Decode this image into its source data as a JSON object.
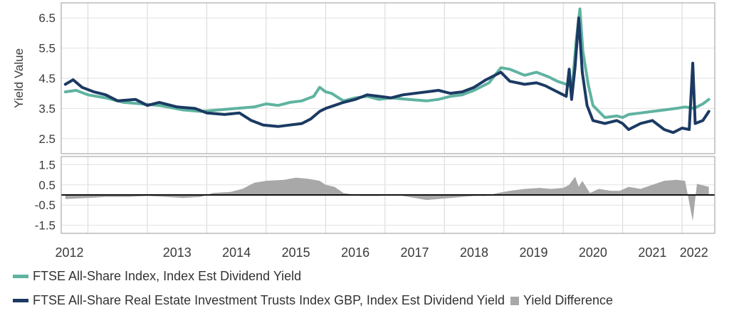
{
  "chart_data": {
    "type": "line",
    "ylabel": "Yield Value",
    "x_ticks": [
      "2012",
      "2013",
      "2014",
      "2015",
      "2016",
      "2017",
      "2018",
      "2019",
      "2020",
      "2021",
      "2022"
    ],
    "top_panel": {
      "ylim": [
        2.0,
        7.0
      ],
      "y_ticks": [
        "6.5",
        "5.5",
        "4.5",
        "3.5",
        "2.5"
      ],
      "series": [
        {
          "name": "FTSE All-Share Index, Index Est Dividend Yield",
          "color": "#5fb3a0",
          "points": [
            [
              2011.62,
              4.05
            ],
            [
              2011.8,
              4.1
            ],
            [
              2012.0,
              3.95
            ],
            [
              2012.3,
              3.85
            ],
            [
              2012.6,
              3.7
            ],
            [
              2012.9,
              3.65
            ],
            [
              2013.2,
              3.6
            ],
            [
              2013.6,
              3.45
            ],
            [
              2013.9,
              3.4
            ],
            [
              2014.2,
              3.45
            ],
            [
              2014.5,
              3.5
            ],
            [
              2014.8,
              3.55
            ],
            [
              2015.0,
              3.65
            ],
            [
              2015.2,
              3.6
            ],
            [
              2015.4,
              3.7
            ],
            [
              2015.6,
              3.75
            ],
            [
              2015.8,
              3.9
            ],
            [
              2015.9,
              4.2
            ],
            [
              2016.0,
              4.05
            ],
            [
              2016.1,
              4.0
            ],
            [
              2016.3,
              3.75
            ],
            [
              2016.5,
              3.85
            ],
            [
              2016.7,
              3.9
            ],
            [
              2016.9,
              3.8
            ],
            [
              2017.1,
              3.85
            ],
            [
              2017.4,
              3.8
            ],
            [
              2017.7,
              3.75
            ],
            [
              2017.9,
              3.8
            ],
            [
              2018.1,
              3.9
            ],
            [
              2018.3,
              3.95
            ],
            [
              2018.5,
              4.1
            ],
            [
              2018.75,
              4.35
            ],
            [
              2018.95,
              4.85
            ],
            [
              2019.1,
              4.8
            ],
            [
              2019.35,
              4.6
            ],
            [
              2019.55,
              4.7
            ],
            [
              2019.75,
              4.55
            ],
            [
              2019.9,
              4.4
            ],
            [
              2020.05,
              4.3
            ],
            [
              2020.15,
              4.2
            ],
            [
              2020.22,
              5.8
            ],
            [
              2020.28,
              6.8
            ],
            [
              2020.33,
              5.4
            ],
            [
              2020.42,
              4.3
            ],
            [
              2020.5,
              3.6
            ],
            [
              2020.7,
              3.2
            ],
            [
              2020.9,
              3.25
            ],
            [
              2021.0,
              3.2
            ],
            [
              2021.1,
              3.3
            ],
            [
              2021.3,
              3.35
            ],
            [
              2021.5,
              3.4
            ],
            [
              2021.7,
              3.45
            ],
            [
              2021.9,
              3.5
            ],
            [
              2022.05,
              3.55
            ],
            [
              2022.2,
              3.5
            ],
            [
              2022.35,
              3.65
            ],
            [
              2022.45,
              3.8
            ]
          ]
        },
        {
          "name": "FTSE All-Share Real Estate Investment Trusts Index GBP, Index Est Dividend Yield",
          "color": "#1b3a63",
          "points": [
            [
              2011.62,
              4.3
            ],
            [
              2011.75,
              4.45
            ],
            [
              2011.9,
              4.2
            ],
            [
              2012.1,
              4.05
            ],
            [
              2012.3,
              3.95
            ],
            [
              2012.5,
              3.75
            ],
            [
              2012.8,
              3.8
            ],
            [
              2013.0,
              3.6
            ],
            [
              2013.2,
              3.7
            ],
            [
              2013.5,
              3.55
            ],
            [
              2013.8,
              3.5
            ],
            [
              2014.0,
              3.35
            ],
            [
              2014.3,
              3.3
            ],
            [
              2014.55,
              3.35
            ],
            [
              2014.75,
              3.1
            ],
            [
              2014.95,
              2.95
            ],
            [
              2015.2,
              2.9
            ],
            [
              2015.4,
              2.95
            ],
            [
              2015.6,
              3.0
            ],
            [
              2015.75,
              3.15
            ],
            [
              2015.9,
              3.4
            ],
            [
              2016.0,
              3.5
            ],
            [
              2016.15,
              3.6
            ],
            [
              2016.3,
              3.7
            ],
            [
              2016.5,
              3.8
            ],
            [
              2016.7,
              3.95
            ],
            [
              2016.9,
              3.9
            ],
            [
              2017.1,
              3.85
            ],
            [
              2017.3,
              3.95
            ],
            [
              2017.5,
              4.0
            ],
            [
              2017.7,
              4.05
            ],
            [
              2017.9,
              4.1
            ],
            [
              2018.1,
              4.0
            ],
            [
              2018.3,
              4.05
            ],
            [
              2018.5,
              4.2
            ],
            [
              2018.7,
              4.45
            ],
            [
              2018.95,
              4.7
            ],
            [
              2019.1,
              4.4
            ],
            [
              2019.35,
              4.3
            ],
            [
              2019.55,
              4.35
            ],
            [
              2019.7,
              4.25
            ],
            [
              2019.85,
              4.1
            ],
            [
              2019.95,
              4.0
            ],
            [
              2020.05,
              3.9
            ],
            [
              2020.1,
              4.8
            ],
            [
              2020.14,
              3.8
            ],
            [
              2020.2,
              4.9
            ],
            [
              2020.26,
              6.5
            ],
            [
              2020.32,
              4.7
            ],
            [
              2020.4,
              3.6
            ],
            [
              2020.5,
              3.1
            ],
            [
              2020.7,
              3.0
            ],
            [
              2020.9,
              3.1
            ],
            [
              2021.0,
              3.0
            ],
            [
              2021.1,
              2.8
            ],
            [
              2021.3,
              3.0
            ],
            [
              2021.5,
              3.1
            ],
            [
              2021.7,
              2.8
            ],
            [
              2021.85,
              2.7
            ],
            [
              2022.0,
              2.85
            ],
            [
              2022.12,
              2.8
            ],
            [
              2022.18,
              5.0
            ],
            [
              2022.22,
              3.0
            ],
            [
              2022.35,
              3.1
            ],
            [
              2022.45,
              3.4
            ]
          ]
        }
      ]
    },
    "bottom_panel": {
      "ylim": [
        -1.9,
        1.9
      ],
      "y_ticks": [
        "1.5",
        "0.5",
        "-0.5",
        "-1.5"
      ],
      "series": [
        {
          "name": "Yield Difference",
          "type": "area",
          "color": "#a8a8a8",
          "points": [
            [
              2011.62,
              -0.2
            ],
            [
              2012.0,
              -0.15
            ],
            [
              2012.3,
              -0.1
            ],
            [
              2012.7,
              -0.1
            ],
            [
              2013.0,
              -0.05
            ],
            [
              2013.3,
              -0.1
            ],
            [
              2013.6,
              -0.15
            ],
            [
              2013.9,
              -0.1
            ],
            [
              2014.1,
              0.1
            ],
            [
              2014.4,
              0.15
            ],
            [
              2014.6,
              0.3
            ],
            [
              2014.8,
              0.6
            ],
            [
              2015.0,
              0.7
            ],
            [
              2015.3,
              0.75
            ],
            [
              2015.5,
              0.85
            ],
            [
              2015.7,
              0.8
            ],
            [
              2015.9,
              0.7
            ],
            [
              2016.0,
              0.5
            ],
            [
              2016.15,
              0.4
            ],
            [
              2016.3,
              0.1
            ],
            [
              2016.6,
              -0.05
            ],
            [
              2016.9,
              -0.05
            ],
            [
              2017.2,
              0.0
            ],
            [
              2017.5,
              -0.15
            ],
            [
              2017.7,
              -0.25
            ],
            [
              2017.9,
              -0.2
            ],
            [
              2018.1,
              -0.15
            ],
            [
              2018.3,
              -0.1
            ],
            [
              2018.5,
              -0.05
            ],
            [
              2018.7,
              -0.05
            ],
            [
              2018.9,
              0.1
            ],
            [
              2019.1,
              0.2
            ],
            [
              2019.35,
              0.3
            ],
            [
              2019.6,
              0.35
            ],
            [
              2019.8,
              0.3
            ],
            [
              2020.0,
              0.35
            ],
            [
              2020.1,
              0.5
            ],
            [
              2020.2,
              0.9
            ],
            [
              2020.26,
              0.4
            ],
            [
              2020.32,
              0.7
            ],
            [
              2020.45,
              0.1
            ],
            [
              2020.6,
              0.3
            ],
            [
              2020.8,
              0.2
            ],
            [
              2020.95,
              0.2
            ],
            [
              2021.1,
              0.4
            ],
            [
              2021.3,
              0.3
            ],
            [
              2021.5,
              0.5
            ],
            [
              2021.7,
              0.7
            ],
            [
              2021.9,
              0.75
            ],
            [
              2022.05,
              0.7
            ],
            [
              2022.18,
              -1.3
            ],
            [
              2022.25,
              0.55
            ],
            [
              2022.45,
              0.4
            ]
          ]
        }
      ]
    }
  },
  "legend": {
    "item1": "FTSE All-Share Index, Index Est Dividend Yield",
    "item2": "FTSE All-Share Real Estate Investment Trusts Index GBP, Index Est Dividend Yield",
    "item3": "Yield Difference",
    "color1": "#5fb3a0",
    "color2": "#1b3a63",
    "color3": "#a8a8a8"
  }
}
